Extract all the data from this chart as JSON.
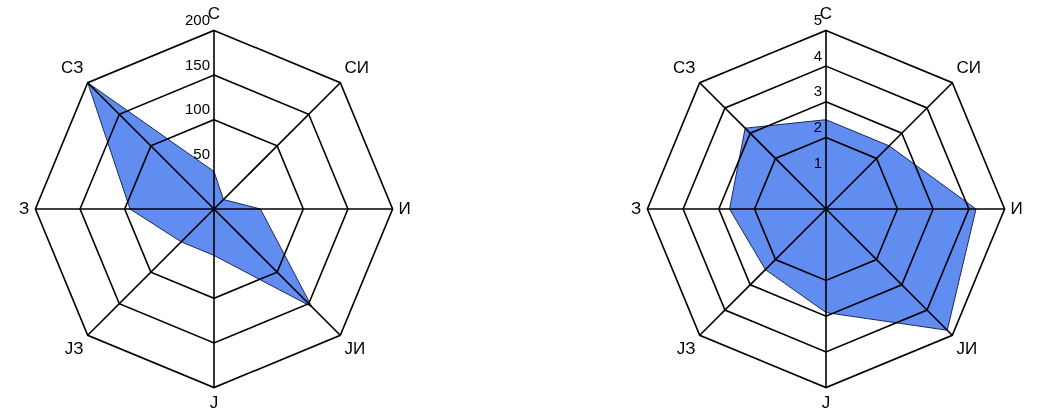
{
  "chart_data": [
    {
      "type": "radar",
      "categories": [
        "С",
        "СИ",
        "И",
        "ЈИ",
        "Ј",
        "ЈЗ",
        "З",
        "СЗ"
      ],
      "series": [
        {
          "color": "#5080ee",
          "values": [
            42,
            15,
            52,
            155,
            52,
            52,
            94,
            200
          ]
        }
      ],
      "ylim": [
        0,
        200
      ],
      "yticks": [
        50,
        100,
        150,
        200
      ],
      "grid": true,
      "legend": false
    },
    {
      "type": "radar",
      "categories": [
        "С",
        "СИ",
        "И",
        "ЈИ",
        "Ј",
        "ЈЗ",
        "З",
        "СЗ"
      ],
      "series": [
        {
          "color": "#5080ee",
          "values": [
            2.5,
            2.5,
            4.2,
            4.8,
            2.9,
            2.4,
            2.7,
            3.2
          ]
        }
      ],
      "ylim": [
        0,
        5
      ],
      "yticks": [
        1,
        2,
        3,
        4,
        5
      ],
      "grid": true,
      "legend": false
    }
  ]
}
